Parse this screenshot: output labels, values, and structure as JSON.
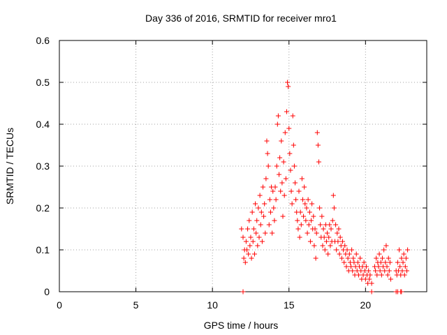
{
  "chart_data": {
    "type": "scatter",
    "title": "Day 336 of 2016, SRMTID for receiver mro1",
    "xlabel": "GPS time / hours",
    "ylabel": "SRMTID / TECUs",
    "xlim": [
      0,
      24
    ],
    "ylim": [
      0,
      0.6
    ],
    "x_ticks": [
      0,
      5,
      10,
      15,
      20
    ],
    "x_tick_labels": [
      "0",
      "5",
      "10",
      "15",
      "20"
    ],
    "y_ticks": [
      0,
      0.1,
      0.2,
      0.3,
      0.4,
      0.5,
      0.6
    ],
    "y_tick_labels": [
      "0",
      "0.1",
      "0.2",
      "0.3",
      "0.4",
      "0.5",
      "0.6"
    ],
    "grid": true,
    "marker": "+",
    "color": "#ff0000",
    "series": [
      {
        "name": "mro1",
        "points": [
          [
            11.9,
            0.15
          ],
          [
            12.0,
            0.13
          ],
          [
            12.05,
            0.08
          ],
          [
            12.1,
            0.1
          ],
          [
            12.15,
            0.07
          ],
          [
            12.2,
            0.12
          ],
          [
            12.25,
            0.1
          ],
          [
            12.3,
            0.15
          ],
          [
            12.35,
            0.09
          ],
          [
            12.4,
            0.17
          ],
          [
            12.45,
            0.11
          ],
          [
            12.5,
            0.13
          ],
          [
            12.55,
            0.08
          ],
          [
            12.6,
            0.19
          ],
          [
            12.65,
            0.12
          ],
          [
            12.7,
            0.15
          ],
          [
            12.75,
            0.09
          ],
          [
            12.8,
            0.21
          ],
          [
            12.85,
            0.14
          ],
          [
            12.9,
            0.17
          ],
          [
            12.95,
            0.11
          ],
          [
            13.0,
            0.2
          ],
          [
            13.05,
            0.13
          ],
          [
            13.1,
            0.23
          ],
          [
            13.15,
            0.16
          ],
          [
            13.2,
            0.19
          ],
          [
            13.25,
            0.12
          ],
          [
            13.3,
            0.25
          ],
          [
            13.35,
            0.18
          ],
          [
            13.4,
            0.21
          ],
          [
            13.45,
            0.14
          ],
          [
            13.5,
            0.27
          ],
          [
            13.55,
            0.36
          ],
          [
            13.6,
            0.33
          ],
          [
            13.65,
            0.3
          ],
          [
            13.7,
            0.16
          ],
          [
            13.75,
            0.22
          ],
          [
            13.8,
            0.19
          ],
          [
            13.85,
            0.25
          ],
          [
            13.9,
            0.14
          ],
          [
            13.95,
            0.24
          ],
          [
            14.0,
            0.2
          ],
          [
            14.05,
            0.17
          ],
          [
            14.1,
            0.25
          ],
          [
            14.15,
            0.22
          ],
          [
            14.2,
            0.3
          ],
          [
            14.25,
            0.4
          ],
          [
            14.3,
            0.42
          ],
          [
            14.35,
            0.28
          ],
          [
            14.4,
            0.32
          ],
          [
            14.45,
            0.24
          ],
          [
            14.5,
            0.36
          ],
          [
            14.55,
            0.26
          ],
          [
            14.6,
            0.18
          ],
          [
            14.65,
            0.31
          ],
          [
            14.7,
            0.23
          ],
          [
            14.75,
            0.38
          ],
          [
            14.8,
            0.27
          ],
          [
            14.85,
            0.43
          ],
          [
            14.9,
            0.5
          ],
          [
            14.95,
            0.49
          ],
          [
            15.0,
            0.39
          ],
          [
            15.05,
            0.33
          ],
          [
            15.1,
            0.29
          ],
          [
            15.15,
            0.24
          ],
          [
            15.2,
            0.21
          ],
          [
            15.25,
            0.42
          ],
          [
            15.3,
            0.35
          ],
          [
            15.35,
            0.3
          ],
          [
            15.4,
            0.26
          ],
          [
            15.45,
            0.22
          ],
          [
            15.5,
            0.19
          ],
          [
            15.55,
            0.17
          ],
          [
            15.6,
            0.15
          ],
          [
            15.65,
            0.24
          ],
          [
            15.7,
            0.13
          ],
          [
            15.75,
            0.19
          ],
          [
            15.8,
            0.16
          ],
          [
            15.85,
            0.27
          ],
          [
            15.9,
            0.22
          ],
          [
            15.95,
            0.18
          ],
          [
            16.0,
            0.25
          ],
          [
            16.05,
            0.21
          ],
          [
            16.1,
            0.17
          ],
          [
            16.15,
            0.2
          ],
          [
            16.2,
            0.14
          ],
          [
            16.25,
            0.22
          ],
          [
            16.3,
            0.16
          ],
          [
            16.35,
            0.19
          ],
          [
            16.4,
            0.12
          ],
          [
            16.45,
            0.17
          ],
          [
            16.5,
            0.21
          ],
          [
            16.55,
            0.15
          ],
          [
            16.6,
            0.18
          ],
          [
            16.65,
            0.11
          ],
          [
            16.7,
            0.15
          ],
          [
            16.75,
            0.08
          ],
          [
            16.8,
            0.14
          ],
          [
            16.85,
            0.38
          ],
          [
            16.9,
            0.35
          ],
          [
            16.95,
            0.31
          ],
          [
            17.0,
            0.2
          ],
          [
            17.05,
            0.16
          ],
          [
            17.1,
            0.13
          ],
          [
            17.15,
            0.18
          ],
          [
            17.2,
            0.11
          ],
          [
            17.25,
            0.15
          ],
          [
            17.3,
            0.13
          ],
          [
            17.35,
            0.1
          ],
          [
            17.4,
            0.16
          ],
          [
            17.45,
            0.12
          ],
          [
            17.5,
            0.14
          ],
          [
            17.55,
            0.09
          ],
          [
            17.6,
            0.13
          ],
          [
            17.65,
            0.16
          ],
          [
            17.7,
            0.11
          ],
          [
            17.75,
            0.15
          ],
          [
            17.8,
            0.12
          ],
          [
            17.85,
            0.17
          ],
          [
            17.9,
            0.23
          ],
          [
            17.95,
            0.2
          ],
          [
            18.0,
            0.12
          ],
          [
            18.05,
            0.16
          ],
          [
            18.1,
            0.1
          ],
          [
            18.15,
            0.14
          ],
          [
            18.2,
            0.12
          ],
          [
            18.25,
            0.15
          ],
          [
            18.3,
            0.09
          ],
          [
            18.35,
            0.13
          ],
          [
            18.4,
            0.11
          ],
          [
            18.45,
            0.08
          ],
          [
            18.5,
            0.12
          ],
          [
            18.55,
            0.1
          ],
          [
            18.6,
            0.07
          ],
          [
            18.65,
            0.11
          ],
          [
            18.7,
            0.09
          ],
          [
            18.75,
            0.06
          ],
          [
            18.8,
            0.1
          ],
          [
            18.85,
            0.08
          ],
          [
            18.9,
            0.05
          ],
          [
            18.95,
            0.09
          ],
          [
            19.0,
            0.07
          ],
          [
            19.05,
            0.06
          ],
          [
            19.1,
            0.1
          ],
          [
            19.15,
            0.05
          ],
          [
            19.2,
            0.08
          ],
          [
            19.25,
            0.07
          ],
          [
            19.3,
            0.04
          ],
          [
            19.35,
            0.06
          ],
          [
            19.4,
            0.09
          ],
          [
            19.45,
            0.05
          ],
          [
            19.5,
            0.07
          ],
          [
            19.55,
            0.04
          ],
          [
            19.6,
            0.06
          ],
          [
            19.65,
            0.08
          ],
          [
            19.7,
            0.05
          ],
          [
            19.75,
            0.03
          ],
          [
            19.8,
            0.06
          ],
          [
            19.85,
            0.04
          ],
          [
            19.9,
            0.07
          ],
          [
            19.95,
            0.05
          ],
          [
            20.0,
            0.03
          ],
          [
            20.05,
            0.06
          ],
          [
            20.1,
            0.04
          ],
          [
            20.15,
            0.02
          ],
          [
            20.2,
            0.05
          ],
          [
            20.25,
            0.03
          ],
          [
            20.3,
            0.04
          ],
          [
            20.4,
            0.02
          ],
          [
            20.6,
            0.06
          ],
          [
            20.65,
            0.05
          ],
          [
            20.7,
            0.08
          ],
          [
            20.75,
            0.04
          ],
          [
            20.8,
            0.07
          ],
          [
            20.85,
            0.06
          ],
          [
            20.9,
            0.09
          ],
          [
            20.95,
            0.05
          ],
          [
            21.0,
            0.07
          ],
          [
            21.05,
            0.04
          ],
          [
            21.1,
            0.08
          ],
          [
            21.15,
            0.06
          ],
          [
            21.2,
            0.1
          ],
          [
            21.25,
            0.05
          ],
          [
            21.3,
            0.07
          ],
          [
            21.35,
            0.11
          ],
          [
            21.4,
            0.06
          ],
          [
            21.45,
            0.04
          ],
          [
            21.5,
            0.08
          ],
          [
            21.55,
            0.05
          ],
          [
            21.6,
            0.07
          ],
          [
            21.65,
            0.03
          ],
          [
            22.0,
            0.05
          ],
          [
            22.05,
            0.04
          ],
          [
            22.1,
            0.07
          ],
          [
            22.15,
            0.05
          ],
          [
            22.2,
            0.1
          ],
          [
            22.25,
            0.06
          ],
          [
            22.3,
            0.04
          ],
          [
            22.35,
            0.08
          ],
          [
            22.4,
            0.05
          ],
          [
            22.45,
            0.07
          ],
          [
            22.5,
            0.09
          ],
          [
            22.55,
            0.04
          ],
          [
            22.6,
            0.06
          ],
          [
            22.65,
            0.08
          ],
          [
            22.7,
            0.05
          ],
          [
            22.75,
            0.1
          ],
          [
            12.0,
            0.0
          ],
          [
            20.4,
            0.0
          ],
          [
            22.0,
            0.0
          ],
          [
            22.1,
            0.0
          ],
          [
            22.3,
            0.0
          ],
          [
            22.35,
            0.0
          ]
        ]
      }
    ]
  }
}
